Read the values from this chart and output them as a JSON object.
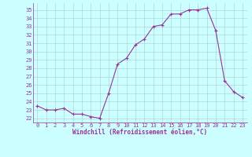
{
  "x": [
    0,
    1,
    2,
    3,
    4,
    5,
    6,
    7,
    8,
    9,
    10,
    11,
    12,
    13,
    14,
    15,
    16,
    17,
    18,
    19,
    20,
    21,
    22,
    23
  ],
  "y": [
    23.5,
    23.0,
    23.0,
    23.2,
    22.5,
    22.5,
    22.2,
    22.0,
    25.0,
    28.5,
    29.2,
    30.8,
    31.5,
    33.0,
    33.2,
    34.5,
    34.5,
    35.0,
    35.0,
    35.2,
    32.5,
    26.5,
    25.2,
    24.5
  ],
  "line_color": "#993399",
  "marker": "+",
  "markersize": 3,
  "linewidth": 0.8,
  "markeredgewidth": 0.8,
  "bg_color": "#ccffff",
  "grid_color": "#aacccc",
  "xlabel": "Windchill (Refroidissement éolien,°C)",
  "xlabel_fontsize": 5.5,
  "xlabel_color": "#993399",
  "tick_color": "#993399",
  "tick_fontsize": 5,
  "ylim": [
    21.5,
    35.8
  ],
  "xlim": [
    -0.5,
    23.5
  ],
  "yticks": [
    22,
    23,
    24,
    25,
    26,
    27,
    28,
    29,
    30,
    31,
    32,
    33,
    34,
    35
  ],
  "xticks": [
    0,
    1,
    2,
    3,
    4,
    5,
    6,
    7,
    8,
    9,
    10,
    11,
    12,
    13,
    14,
    15,
    16,
    17,
    18,
    19,
    20,
    21,
    22,
    23
  ]
}
